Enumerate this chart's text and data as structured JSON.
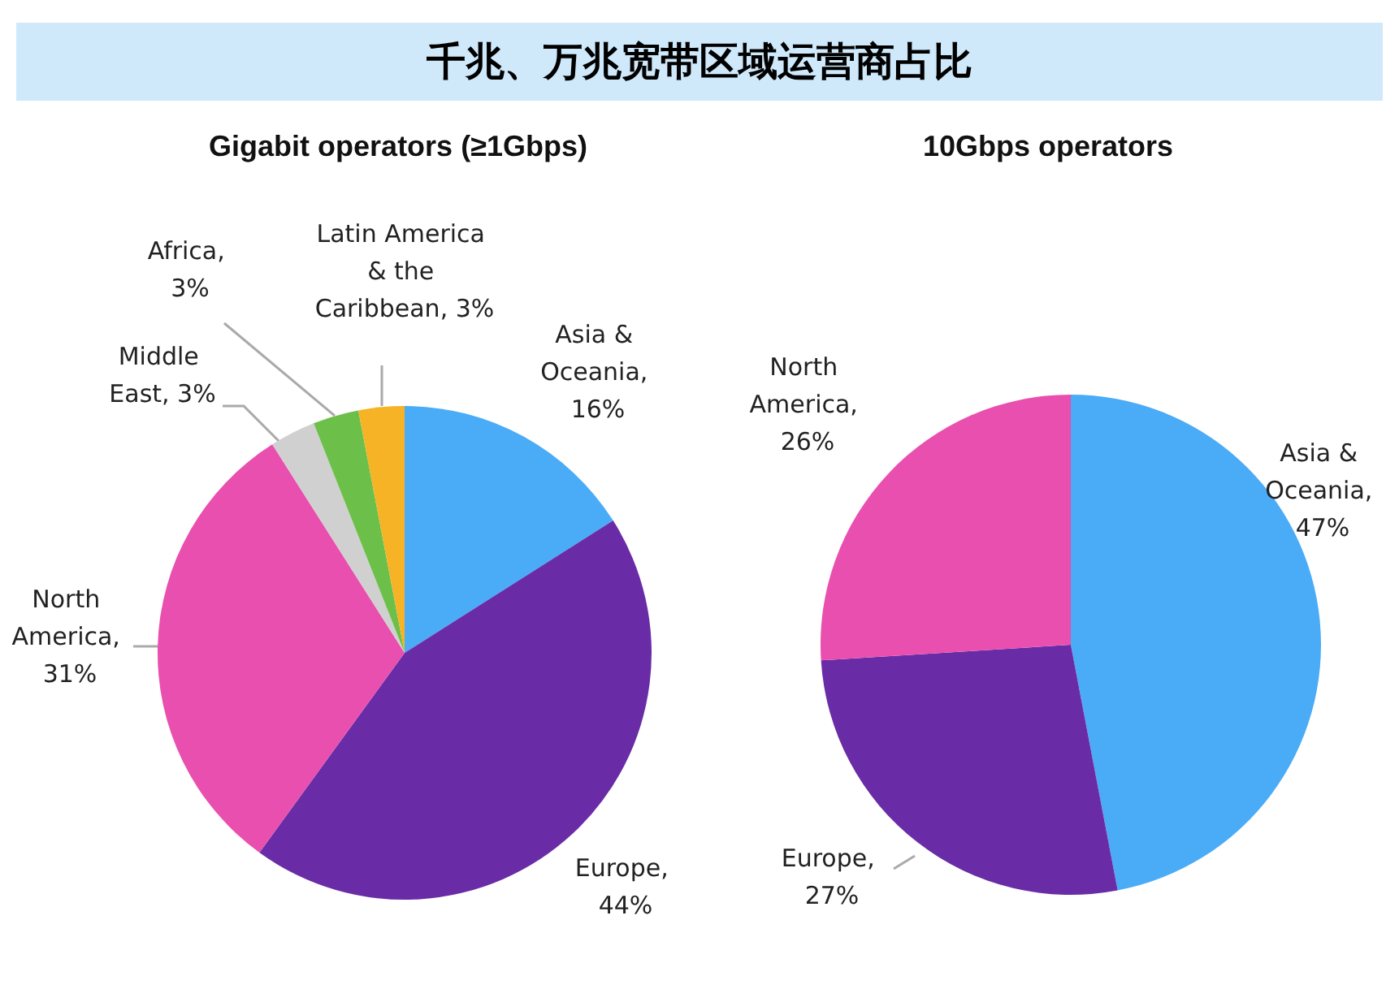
{
  "chart_data": [
    {
      "type": "pie",
      "title": "千兆、万兆宽带区域运营商占比",
      "subtitle": "Gigabit operators (≥1Gbps)",
      "categories": [
        "Asia & Oceania",
        "Europe",
        "North America",
        "Middle East",
        "Africa",
        "Latin America & the Caribbean"
      ],
      "values": [
        16,
        44,
        31,
        3,
        3,
        3
      ],
      "value_labels": [
        ", 16%",
        ", 44%",
        ", 31%",
        ", 3%",
        ", 3%",
        ", 3%"
      ],
      "colors": [
        "#4aabf7",
        "#6a2ca6",
        "#e94fae",
        "#d0d0d0",
        "#6cc04a",
        "#f5b325"
      ],
      "legend": false
    },
    {
      "type": "pie",
      "title": "10Gbps operators",
      "categories": [
        "Asia & Oceania",
        "Europe",
        "North America"
      ],
      "values": [
        47,
        27,
        26
      ],
      "value_labels": [
        ", 47%",
        ", 27%",
        ", 26%"
      ],
      "colors": [
        "#4aabf7",
        "#6a2ca6",
        "#e94fae"
      ],
      "legend": false
    }
  ]
}
